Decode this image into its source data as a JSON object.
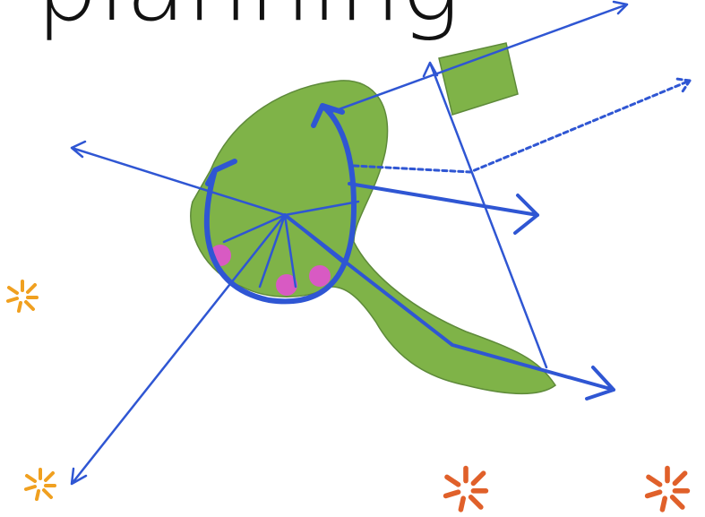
{
  "header": {
    "title": "planning"
  }
}
